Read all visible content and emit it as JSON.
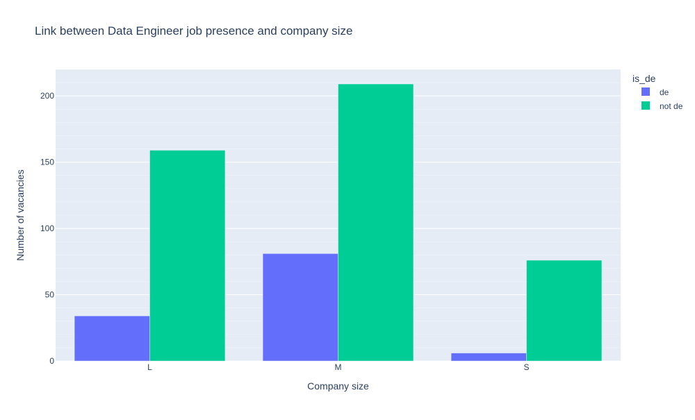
{
  "chart_data": {
    "type": "bar",
    "title": "Link between Data Engineer job presence and company size",
    "xlabel": "Company size",
    "ylabel": "Number of vacancies",
    "categories": [
      "L",
      "M",
      "S"
    ],
    "series": [
      {
        "name": "de",
        "values": [
          34,
          81,
          6
        ],
        "color": "#636efa"
      },
      {
        "name": "not de",
        "values": [
          159,
          209,
          76
        ],
        "color": "#00cc96"
      }
    ],
    "ylim": [
      0,
      220
    ],
    "yticks": [
      0,
      50,
      100,
      150,
      200
    ],
    "grid": true,
    "legend": {
      "title": "is_de",
      "position": "top-right"
    },
    "colors": {
      "plot_background": "#e5ecf6",
      "grid": "#ffffff",
      "text": "#2a3f5f"
    }
  }
}
